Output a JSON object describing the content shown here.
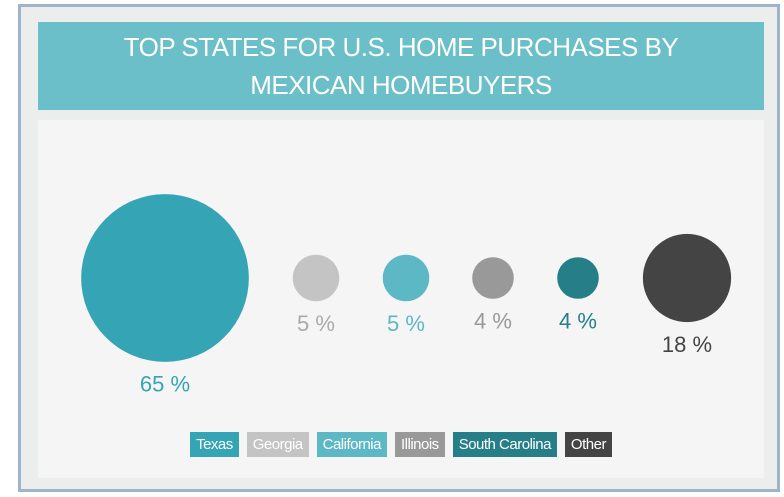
{
  "chart_data": {
    "type": "bubble",
    "title": "TOP STATES FOR U.S. HOME PURCHASES BY MEXICAN HOMEBUYERS",
    "categories": [
      "Texas",
      "Georgia",
      "California",
      "Illinois",
      "South Carolina",
      "Other"
    ],
    "values": [
      65,
      5,
      5,
      4,
      4,
      18
    ],
    "value_labels": [
      "65 %",
      "5 %",
      "5 %",
      "4 %",
      "4 %",
      "18 %"
    ],
    "colors": [
      "#35a4b4",
      "#c4c4c4",
      "#5cb8c4",
      "#999999",
      "#267f88",
      "#444444"
    ],
    "legend": true
  }
}
